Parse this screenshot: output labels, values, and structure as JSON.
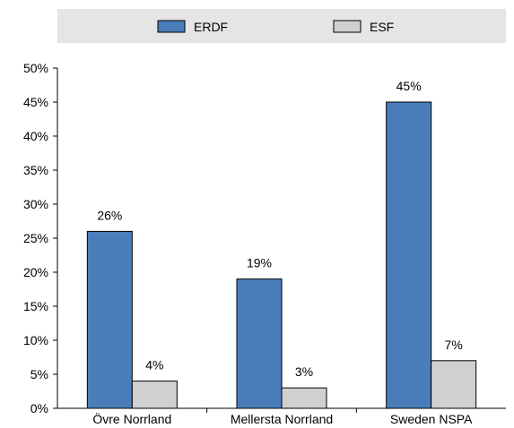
{
  "chart_data": {
    "type": "bar",
    "categories": [
      "Övre Norrland",
      "Mellersta Norrland",
      "Sweden NSPA"
    ],
    "series": [
      {
        "name": "ERDF",
        "values": [
          26,
          19,
          45
        ],
        "labels": [
          "26%",
          "19%",
          "45%"
        ],
        "color": "#4a7ebb"
      },
      {
        "name": "ESF",
        "values": [
          4,
          3,
          7
        ],
        "labels": [
          "4%",
          "3%",
          "7%"
        ],
        "color": "#d0d0d0"
      }
    ],
    "value_format": "percent",
    "ylim": [
      0,
      50
    ],
    "yticks": [
      0,
      5,
      10,
      15,
      20,
      25,
      30,
      35,
      40,
      45,
      50
    ],
    "ytick_labels": [
      "0%",
      "5%",
      "10%",
      "15%",
      "20%",
      "25%",
      "30%",
      "35%",
      "40%",
      "45%",
      "50%"
    ],
    "legend_position": "top",
    "grid": false,
    "title": "",
    "xlabel": "",
    "ylabel": ""
  },
  "colors": {
    "legend_background": "#e5e5e5",
    "axis": "#000000",
    "bar_edge": "#000000"
  }
}
